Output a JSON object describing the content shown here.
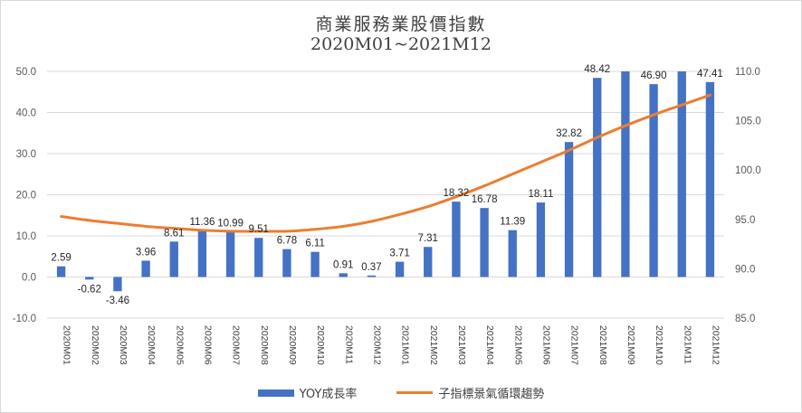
{
  "chart_data": {
    "type": "bar+line",
    "title": "商業服務業股價指數",
    "subtitle": "2020M01~2021M12",
    "categories": [
      "2020M01",
      "2020M02",
      "2020M03",
      "2020M04",
      "2020M05",
      "2020M06",
      "2020M07",
      "2020M08",
      "2020M09",
      "2020M10",
      "2020M11",
      "2020M12",
      "2021M01",
      "2021M02",
      "2021M03",
      "2021M04",
      "2021M05",
      "2021M06",
      "2021M07",
      "2021M08",
      "2021M09",
      "2021M10",
      "2021M11",
      "2021M12"
    ],
    "bar_labels": [
      "2.59",
      "-0.62",
      "-3.46",
      "3.96",
      "8.61",
      "11.36",
      "10.99",
      "9.51",
      "6.78",
      "6.11",
      "0.91",
      "0.37",
      "3.71",
      "7.31",
      "18.32",
      "16.78",
      "11.39",
      "18.11",
      "32.82",
      "48.42",
      "",
      "46.90",
      "",
      "47.41"
    ],
    "series": [
      {
        "name": "YOY成長率",
        "axis": "left",
        "color": "#4472c4",
        "values": [
          2.59,
          -0.62,
          -3.46,
          3.96,
          8.61,
          11.36,
          10.99,
          9.51,
          6.78,
          6.11,
          0.91,
          0.37,
          3.71,
          7.31,
          18.32,
          16.78,
          11.39,
          18.11,
          32.82,
          48.42,
          50.0,
          46.9,
          50.0,
          47.41
        ]
      },
      {
        "name": "子指標景氣循環趨勢",
        "axis": "right",
        "color": "#ed7d31",
        "values": [
          95.3,
          94.9,
          94.6,
          94.3,
          94.1,
          93.9,
          93.8,
          93.8,
          93.8,
          94.0,
          94.3,
          94.8,
          95.5,
          96.3,
          97.3,
          98.4,
          99.6,
          100.8,
          102.0,
          103.3,
          104.5,
          105.6,
          106.6,
          107.6
        ]
      }
    ],
    "y_left": {
      "ticks": [
        "-10.0",
        "0.0",
        "10.0",
        "20.0",
        "30.0",
        "40.0",
        "50.0"
      ],
      "range": [
        -10,
        50
      ]
    },
    "y_right": {
      "ticks": [
        "85.0",
        "90.0",
        "95.0",
        "100.0",
        "105.0",
        "110.0"
      ],
      "range": [
        85,
        110
      ]
    },
    "grid": true,
    "legend_position": "bottom"
  }
}
